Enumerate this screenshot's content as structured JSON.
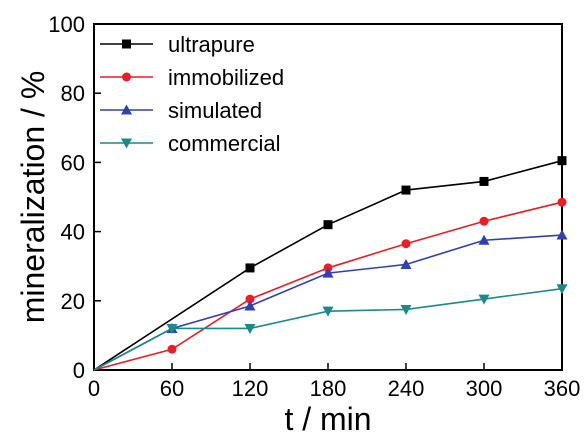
{
  "chart_data": {
    "type": "line",
    "title": "",
    "xlabel": "t / min",
    "ylabel": "mineralization / %",
    "xlim": [
      0,
      360
    ],
    "ylim": [
      0,
      100
    ],
    "xticks": [
      0,
      60,
      120,
      180,
      240,
      300,
      360
    ],
    "yticks": [
      0,
      20,
      40,
      60,
      80,
      100
    ],
    "x": [
      0,
      60,
      120,
      180,
      240,
      300,
      360
    ],
    "legend_position": "top-left",
    "grid": false,
    "series": [
      {
        "name": "ultrapure",
        "color": "#000000",
        "marker": "square",
        "values": [
          0,
          null,
          29.5,
          42,
          52,
          54.5,
          60.5
        ]
      },
      {
        "name": "immobilized",
        "color": "#ee1c24",
        "marker": "circle",
        "values": [
          0,
          6,
          20.5,
          29.5,
          36.5,
          43,
          48.5
        ]
      },
      {
        "name": "simulated",
        "color": "#3040b0",
        "marker": "triangle-up",
        "values": [
          0,
          12,
          18.5,
          28,
          30.5,
          37.5,
          39
        ]
      },
      {
        "name": "commercial",
        "color": "#1a8a8a",
        "marker": "triangle-down",
        "values": [
          0,
          12,
          12,
          17,
          17.5,
          20.5,
          23.5
        ]
      }
    ]
  }
}
